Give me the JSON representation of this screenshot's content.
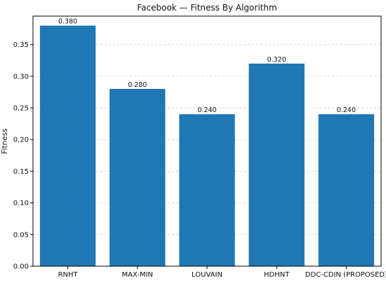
{
  "chart_data": {
    "type": "bar",
    "title": "Facebook — Fitness By Algorithm",
    "ylabel": "Fitness",
    "categories": [
      "RNHT",
      "MAX-MIN",
      "LOUVAIN",
      "HDHNT",
      "DDC-CDIN (PROPOSED)"
    ],
    "values": [
      0.38,
      0.28,
      0.24,
      0.32,
      0.24
    ],
    "value_labels": [
      "0.380",
      "0.280",
      "0.240",
      "0.320",
      "0.240"
    ],
    "ylim": [
      0,
      0.395
    ],
    "yticks": [
      0.0,
      0.05,
      0.1,
      0.15,
      0.2,
      0.25,
      0.3,
      0.35
    ],
    "ytick_labels": [
      "0.00",
      "0.05",
      "0.10",
      "0.15",
      "0.20",
      "0.25",
      "0.30",
      "0.35"
    ],
    "grid": "horizontal-dashed",
    "bar_color": "#1f77b4"
  }
}
